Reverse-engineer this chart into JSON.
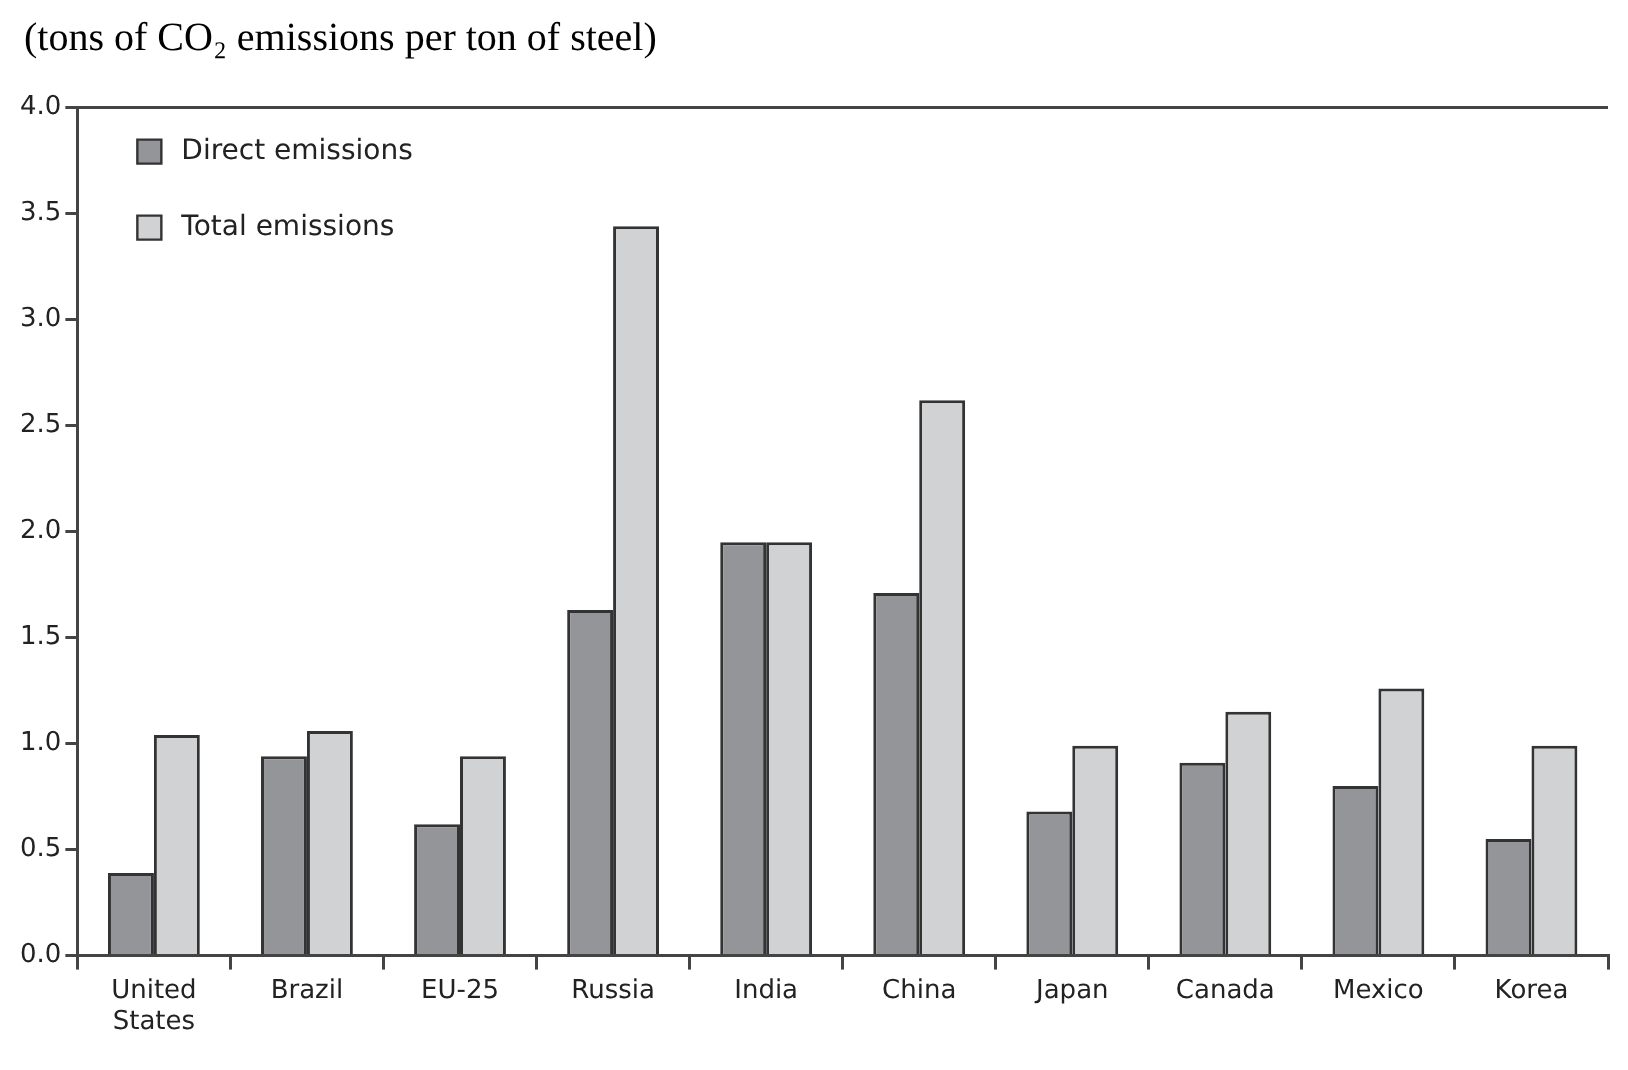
{
  "chart_data": {
    "type": "bar",
    "title": "(tons of CO₂ emissions per ton of steel)",
    "categories": [
      "United States",
      "Brazil",
      "EU-25",
      "Russia",
      "India",
      "China",
      "Japan",
      "Canada",
      "Mexico",
      "Korea"
    ],
    "series": [
      {
        "name": "Direct emissions",
        "color": "#939598",
        "values": [
          0.39,
          0.94,
          0.62,
          1.63,
          1.95,
          1.71,
          0.68,
          0.91,
          0.8,
          0.55
        ]
      },
      {
        "name": "Total emissions",
        "color": "#d1d2d4",
        "values": [
          1.04,
          1.06,
          0.94,
          3.44,
          1.95,
          2.62,
          0.99,
          1.15,
          1.26,
          0.99
        ]
      }
    ],
    "ylim": [
      0,
      4
    ],
    "yticks": [
      {
        "value": 0,
        "label": "0.0"
      },
      {
        "value": 0.5,
        "label": "0.5"
      },
      {
        "value": 1,
        "label": "1.0"
      },
      {
        "value": 1.5,
        "label": "1.5"
      },
      {
        "value": 2,
        "label": "2.0"
      },
      {
        "value": 2.5,
        "label": "2.5"
      },
      {
        "value": 3,
        "label": "3.0"
      },
      {
        "value": 3.5,
        "label": "3.5"
      },
      {
        "value": 4,
        "label": "4.0"
      }
    ],
    "grid": false,
    "legend": "top left"
  }
}
